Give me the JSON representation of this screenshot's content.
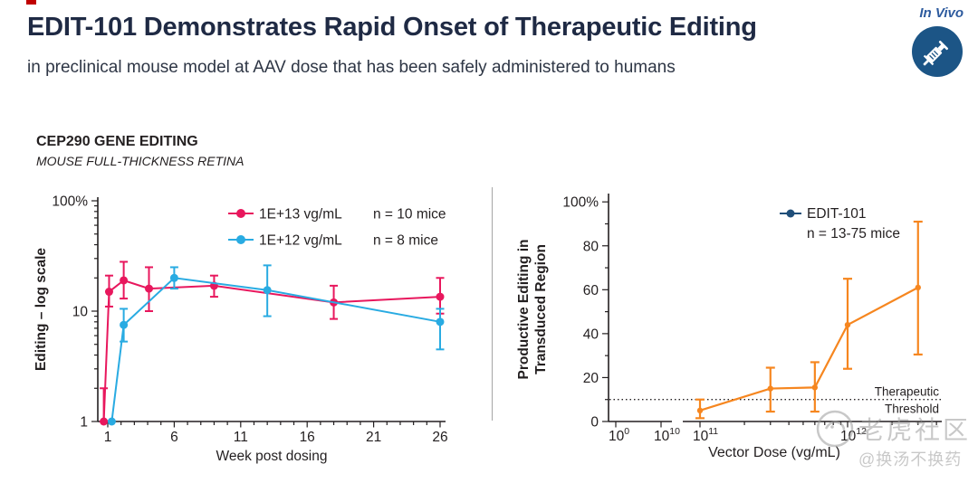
{
  "header": {
    "title": "EDIT-101 Demonstrates Rapid Onset of Therapeutic Editing",
    "subtitle": "in preclinical mouse model at AAV dose that has been safely administered to humans",
    "badge_label": "In Vivo",
    "badge_icon": "syringe-icon",
    "title_color": "#1F2A44",
    "badge_text_color": "#2E5B9E",
    "badge_circle_color": "#1C5586",
    "marker_color": "#C00000"
  },
  "watermark": {
    "line1": "老虎社区",
    "line2": "@换汤不换药",
    "color": "#9B9B9B"
  },
  "chart_data": [
    {
      "id": "cep290-editing",
      "type": "line",
      "title": "CEP290 GENE EDITING",
      "subtitle": "MOUSE FULL-THICKNESS RETINA",
      "xlabel": "Week post dosing",
      "ylabel": "Editing – log scale",
      "yscale": "log",
      "ylim": [
        1,
        100
      ],
      "ytick_values": [
        1,
        10,
        100
      ],
      "ytick_labels": [
        "1",
        "10",
        "100%"
      ],
      "xticks": [
        1,
        6,
        11,
        16,
        21,
        26
      ],
      "xminor_from": 1,
      "xminor_to": 26,
      "legend_position": "top-right-inside",
      "grid": false,
      "series": [
        {
          "name": "1E+13 vg/mL",
          "n_label": "n = 10 mice",
          "color": "#E8175D",
          "x": [
            0.7,
            1.1,
            2.2,
            4.1,
            9,
            18,
            26
          ],
          "y": [
            1,
            15,
            19,
            16,
            17,
            12,
            13.5
          ],
          "err_lo": [
            1,
            11,
            13,
            10,
            13.5,
            8.5,
            9.5
          ],
          "err_hi": [
            2,
            21,
            28,
            25,
            21,
            17,
            20
          ]
        },
        {
          "name": "1E+12 vg/mL",
          "n_label": "n = 8 mice",
          "color": "#29ABE2",
          "x": [
            1.3,
            2.2,
            6,
            13,
            26
          ],
          "y": [
            1,
            7.5,
            20,
            15.5,
            8
          ],
          "err_lo": [
            1,
            5.3,
            16,
            9,
            4.5
          ],
          "err_hi": [
            1,
            10.5,
            25,
            26,
            10.5
          ]
        }
      ]
    },
    {
      "id": "productive-editing-dose",
      "type": "line",
      "xlabel": "Vector Dose (vg/mL)",
      "ylabel_lines": [
        "Productive Editing in",
        "Transduced Region"
      ],
      "yscale": "linear",
      "ylim": [
        0,
        100
      ],
      "yticks": [
        0,
        20,
        40,
        60,
        80,
        100
      ],
      "ytick_labels": [
        "0",
        "20",
        "40",
        "60",
        "80",
        "100%"
      ],
      "yminors": [
        10,
        30,
        50,
        70,
        90
      ],
      "xscale": "log-with-break",
      "xtick_labels": [
        {
          "base": "10",
          "exp": "0"
        },
        {
          "base": "10",
          "exp": "10"
        },
        {
          "base": "10",
          "exp": "11"
        },
        {
          "base": "10",
          "exp": "12"
        }
      ],
      "threshold": {
        "value": 10,
        "label_line1": "Therapeutic",
        "label_line2": "Threshold"
      },
      "legend": {
        "name": "EDIT-101",
        "n_label": "n = 13-75 mice",
        "marker_color": "#1F4E79"
      },
      "grid": false,
      "series": [
        {
          "name": "EDIT-101",
          "color": "#F6861F",
          "x_doses": [
            100000000000.0,
            300000000000.0,
            600000000000.0,
            1000000000000.0,
            3000000000000.0
          ],
          "y": [
            5,
            15,
            15.5,
            44,
            61
          ],
          "err_lo": [
            1.5,
            4.5,
            4.5,
            24,
            30.5
          ],
          "err_hi": [
            10,
            24.5,
            27,
            65,
            91
          ]
        }
      ]
    }
  ]
}
